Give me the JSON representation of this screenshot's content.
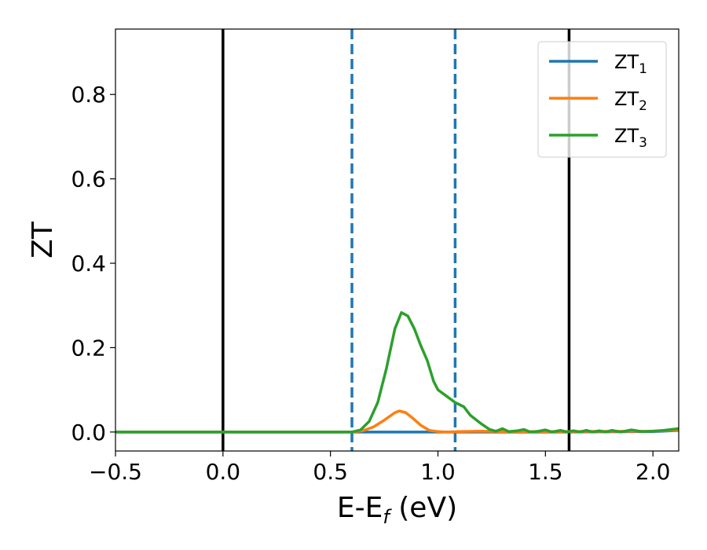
{
  "chart_data": {
    "type": "line",
    "xlabel_main": "E-E",
    "xlabel_sub": "f",
    "xlabel_unit": " (eV)",
    "ylabel": "ZT",
    "xlim": [
      -0.5,
      2.12
    ],
    "ylim": [
      -0.045,
      0.955
    ],
    "x_ticks": [
      -0.5,
      0.0,
      0.5,
      1.0,
      1.5,
      2.0
    ],
    "x_tick_labels": [
      "−0.5",
      "0.0",
      "0.5",
      "1.0",
      "1.5",
      "2.0"
    ],
    "y_ticks": [
      0.0,
      0.2,
      0.4,
      0.6,
      0.8
    ],
    "y_tick_labels": [
      "0.0",
      "0.2",
      "0.4",
      "0.6",
      "0.8"
    ],
    "grid": false,
    "legend_position": "top-right",
    "vlines": [
      {
        "x": 0.0,
        "color": "#000000",
        "style": "solid"
      },
      {
        "x": 1.61,
        "color": "#000000",
        "style": "solid"
      },
      {
        "x": 0.6,
        "color": "#1f77b4",
        "style": "dashed"
      },
      {
        "x": 1.08,
        "color": "#1f77b4",
        "style": "dashed"
      }
    ],
    "series": [
      {
        "name": "ZT",
        "sub": "1",
        "color": "#1f77b4",
        "points": [
          [
            -0.5,
            0
          ],
          [
            0.6,
            0
          ],
          [
            1.0,
            0
          ],
          [
            1.5,
            0
          ],
          [
            2.0,
            0.001
          ],
          [
            2.05,
            0.002
          ],
          [
            2.12,
            0.004
          ]
        ]
      },
      {
        "name": "ZT",
        "sub": "2",
        "color": "#ff7f0e",
        "points": [
          [
            -0.5,
            0
          ],
          [
            0.6,
            0
          ],
          [
            0.65,
            0.003
          ],
          [
            0.7,
            0.012
          ],
          [
            0.75,
            0.028
          ],
          [
            0.8,
            0.046
          ],
          [
            0.82,
            0.05
          ],
          [
            0.85,
            0.046
          ],
          [
            0.88,
            0.034
          ],
          [
            0.92,
            0.016
          ],
          [
            0.96,
            0.004
          ],
          [
            1.0,
            0.001
          ],
          [
            1.04,
            0.0
          ],
          [
            1.1,
            0.001
          ],
          [
            1.2,
            0.002
          ],
          [
            1.3,
            0.001
          ],
          [
            1.5,
            0.001
          ],
          [
            2.0,
            0.002
          ],
          [
            2.12,
            0.005
          ]
        ]
      },
      {
        "name": "ZT",
        "sub": "3",
        "color": "#2ca02c",
        "points": [
          [
            -0.5,
            0
          ],
          [
            0.6,
            0
          ],
          [
            0.64,
            0.005
          ],
          [
            0.68,
            0.025
          ],
          [
            0.72,
            0.07
          ],
          [
            0.76,
            0.15
          ],
          [
            0.8,
            0.245
          ],
          [
            0.83,
            0.283
          ],
          [
            0.86,
            0.275
          ],
          [
            0.89,
            0.245
          ],
          [
            0.92,
            0.205
          ],
          [
            0.95,
            0.17
          ],
          [
            0.98,
            0.12
          ],
          [
            1.0,
            0.1
          ],
          [
            1.04,
            0.085
          ],
          [
            1.08,
            0.07
          ],
          [
            1.12,
            0.06
          ],
          [
            1.15,
            0.04
          ],
          [
            1.2,
            0.02
          ],
          [
            1.24,
            0.006
          ],
          [
            1.27,
            0.002
          ],
          [
            1.3,
            0.008
          ],
          [
            1.33,
            0.001
          ],
          [
            1.37,
            0.003
          ],
          [
            1.4,
            0.006
          ],
          [
            1.43,
            0.0
          ],
          [
            1.47,
            0.002
          ],
          [
            1.5,
            0.005
          ],
          [
            1.53,
            0.0
          ],
          [
            1.57,
            0.004
          ],
          [
            1.6,
            0.0
          ],
          [
            1.63,
            0.003
          ],
          [
            1.66,
            0.0
          ],
          [
            1.69,
            0.004
          ],
          [
            1.72,
            0.0
          ],
          [
            1.75,
            0.003
          ],
          [
            1.78,
            0.0
          ],
          [
            1.81,
            0.004
          ],
          [
            1.85,
            0.0
          ],
          [
            1.9,
            0.005
          ],
          [
            1.95,
            0.001
          ],
          [
            2.0,
            0.002
          ],
          [
            2.05,
            0.004
          ],
          [
            2.12,
            0.008
          ]
        ]
      }
    ]
  }
}
